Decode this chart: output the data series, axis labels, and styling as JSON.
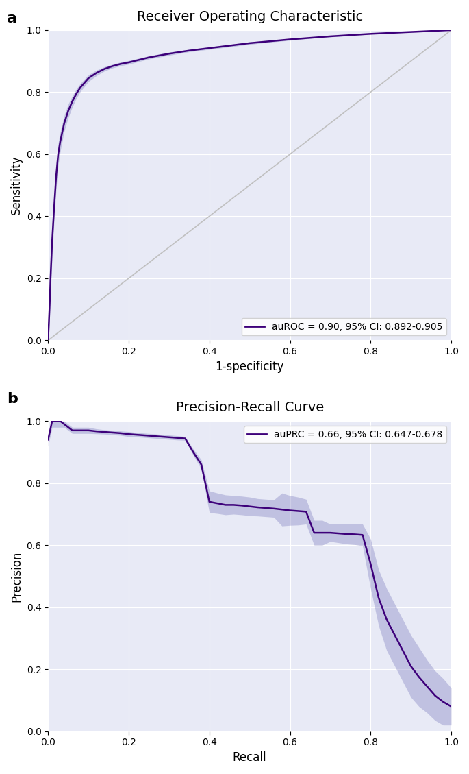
{
  "roc_title": "Receiver Operating Characteristic",
  "roc_xlabel": "1-specificity",
  "roc_ylabel": "Sensitivity",
  "roc_legend": "auROC = 0.90, 95% CI: 0.892-0.905",
  "prc_title": "Precision-Recall Curve",
  "prc_xlabel": "Recall",
  "prc_ylabel": "Precision",
  "prc_legend": "auPRC = 0.66, 95% CI: 0.647-0.678",
  "line_color": "#3d007a",
  "fill_color": "#8080c0",
  "fill_alpha": 0.38,
  "bg_color": "#E8EAF6",
  "diagonal_color": "#C0C0C0",
  "label_a": "a",
  "label_b": "b",
  "roc_fpr": [
    0.0,
    0.002,
    0.004,
    0.006,
    0.01,
    0.015,
    0.02,
    0.025,
    0.03,
    0.04,
    0.05,
    0.06,
    0.07,
    0.08,
    0.09,
    0.1,
    0.12,
    0.14,
    0.16,
    0.18,
    0.2,
    0.25,
    0.3,
    0.35,
    0.4,
    0.45,
    0.5,
    0.55,
    0.6,
    0.65,
    0.7,
    0.75,
    0.8,
    0.85,
    0.9,
    0.95,
    1.0
  ],
  "roc_tpr": [
    0.0,
    0.06,
    0.12,
    0.2,
    0.32,
    0.43,
    0.53,
    0.6,
    0.64,
    0.7,
    0.74,
    0.77,
    0.795,
    0.815,
    0.83,
    0.845,
    0.862,
    0.875,
    0.884,
    0.891,
    0.896,
    0.912,
    0.924,
    0.934,
    0.942,
    0.95,
    0.958,
    0.964,
    0.97,
    0.975,
    0.98,
    0.984,
    0.988,
    0.991,
    0.994,
    0.997,
    1.0
  ],
  "roc_upper": [
    0.0,
    0.09,
    0.16,
    0.25,
    0.37,
    0.47,
    0.57,
    0.635,
    0.672,
    0.725,
    0.762,
    0.788,
    0.81,
    0.828,
    0.842,
    0.856,
    0.871,
    0.882,
    0.89,
    0.897,
    0.902,
    0.917,
    0.929,
    0.938,
    0.946,
    0.954,
    0.962,
    0.967,
    0.973,
    0.977,
    0.982,
    0.986,
    0.989,
    0.992,
    0.995,
    0.998,
    1.0
  ],
  "roc_lower": [
    0.0,
    0.03,
    0.08,
    0.15,
    0.27,
    0.39,
    0.49,
    0.565,
    0.608,
    0.675,
    0.718,
    0.752,
    0.78,
    0.802,
    0.818,
    0.834,
    0.853,
    0.868,
    0.878,
    0.885,
    0.89,
    0.907,
    0.919,
    0.93,
    0.938,
    0.946,
    0.954,
    0.961,
    0.967,
    0.973,
    0.978,
    0.982,
    0.987,
    0.99,
    0.993,
    0.996,
    1.0
  ],
  "prc_recall": [
    0.0,
    0.01,
    0.02,
    0.03,
    0.04,
    0.05,
    0.06,
    0.07,
    0.08,
    0.09,
    0.1,
    0.12,
    0.14,
    0.16,
    0.18,
    0.2,
    0.22,
    0.24,
    0.26,
    0.28,
    0.3,
    0.32,
    0.34,
    0.36,
    0.38,
    0.4,
    0.42,
    0.44,
    0.46,
    0.48,
    0.5,
    0.52,
    0.54,
    0.56,
    0.58,
    0.6,
    0.62,
    0.64,
    0.66,
    0.68,
    0.7,
    0.72,
    0.74,
    0.76,
    0.78,
    0.8,
    0.82,
    0.84,
    0.86,
    0.88,
    0.9,
    0.92,
    0.94,
    0.96,
    0.98,
    1.0
  ],
  "prc_prec": [
    0.94,
    1.0,
    1.0,
    1.0,
    0.99,
    0.98,
    0.97,
    0.97,
    0.97,
    0.97,
    0.97,
    0.967,
    0.965,
    0.963,
    0.961,
    0.958,
    0.956,
    0.954,
    0.952,
    0.95,
    0.948,
    0.946,
    0.944,
    0.9,
    0.86,
    0.74,
    0.735,
    0.73,
    0.73,
    0.728,
    0.725,
    0.722,
    0.72,
    0.718,
    0.715,
    0.712,
    0.71,
    0.708,
    0.64,
    0.64,
    0.64,
    0.638,
    0.636,
    0.635,
    0.633,
    0.54,
    0.43,
    0.36,
    0.31,
    0.26,
    0.21,
    0.175,
    0.145,
    0.115,
    0.095,
    0.08
  ],
  "prc_upper": [
    0.96,
    1.0,
    1.0,
    1.0,
    1.0,
    0.99,
    0.98,
    0.98,
    0.98,
    0.98,
    0.98,
    0.975,
    0.972,
    0.97,
    0.968,
    0.966,
    0.963,
    0.961,
    0.959,
    0.957,
    0.955,
    0.953,
    0.95,
    0.91,
    0.875,
    0.775,
    0.768,
    0.762,
    0.76,
    0.758,
    0.755,
    0.75,
    0.748,
    0.746,
    0.768,
    0.76,
    0.755,
    0.748,
    0.68,
    0.68,
    0.668,
    0.668,
    0.668,
    0.668,
    0.668,
    0.62,
    0.52,
    0.46,
    0.41,
    0.36,
    0.31,
    0.27,
    0.23,
    0.195,
    0.17,
    0.14
  ],
  "prc_lower": [
    0.92,
    0.98,
    0.98,
    0.98,
    0.98,
    0.97,
    0.96,
    0.96,
    0.96,
    0.96,
    0.96,
    0.959,
    0.958,
    0.956,
    0.954,
    0.95,
    0.949,
    0.947,
    0.945,
    0.943,
    0.941,
    0.939,
    0.938,
    0.89,
    0.845,
    0.705,
    0.702,
    0.698,
    0.7,
    0.698,
    0.695,
    0.694,
    0.692,
    0.69,
    0.662,
    0.664,
    0.665,
    0.668,
    0.6,
    0.6,
    0.612,
    0.608,
    0.604,
    0.602,
    0.598,
    0.46,
    0.34,
    0.26,
    0.21,
    0.16,
    0.11,
    0.08,
    0.06,
    0.035,
    0.02,
    0.02
  ]
}
